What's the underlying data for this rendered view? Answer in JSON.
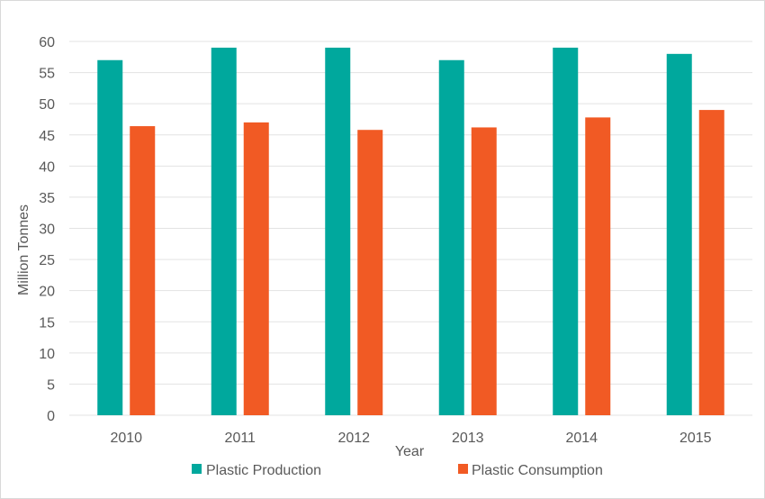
{
  "chart_data": {
    "type": "bar",
    "title": "",
    "xlabel": "Year",
    "ylabel": "Million Tonnes",
    "categories": [
      "2010",
      "2011",
      "2012",
      "2013",
      "2014",
      "2015"
    ],
    "series": [
      {
        "name": "Plastic Production",
        "values": [
          57,
          59,
          59,
          57,
          59,
          58
        ],
        "color": "#00A89D"
      },
      {
        "name": "Plastic Consumption",
        "values": [
          46.4,
          47,
          45.8,
          46.2,
          47.8,
          49
        ],
        "color": "#F15A24"
      }
    ],
    "ylim": [
      0,
      60
    ],
    "ytick_step": 5,
    "yticks": [
      "0",
      "5",
      "10",
      "15",
      "20",
      "25",
      "30",
      "35",
      "40",
      "45",
      "50",
      "55",
      "60"
    ],
    "grid": true,
    "legend_position": "bottom"
  }
}
